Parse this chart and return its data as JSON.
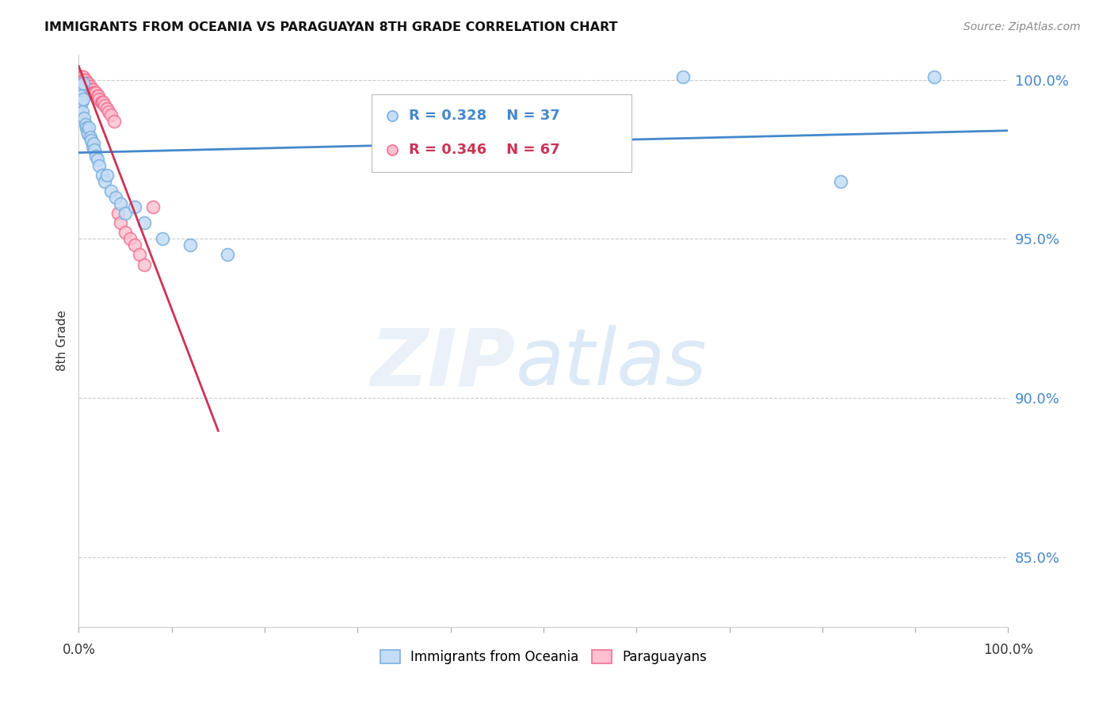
{
  "title": "IMMIGRANTS FROM OCEANIA VS PARAGUAYAN 8TH GRADE CORRELATION CHART",
  "source": "Source: ZipAtlas.com",
  "ylabel": "8th Grade",
  "xmin": 0.0,
  "xmax": 1.0,
  "ymin": 0.828,
  "ymax": 1.008,
  "blue_color": "#7ab0e0",
  "pink_color": "#f07090",
  "blue_fill": "#c5dcf5",
  "pink_fill": "#ffc0d0",
  "line_blue": "#4488cc",
  "line_pink": "#cc3355",
  "legend_R_blue": "R = 0.328",
  "legend_N_blue": "N = 37",
  "legend_R_pink": "R = 0.346",
  "legend_N_pink": "N = 67",
  "legend_label_blue": "Immigrants from Oceania",
  "legend_label_pink": "Paraguayans",
  "yticks": [
    0.85,
    0.9,
    0.95,
    1.0
  ],
  "ytick_labels": [
    "85.0%",
    "90.0%",
    "95.0%",
    "100.0%"
  ],
  "blue_scatter_x": [
    0.001,
    0.001,
    0.001,
    0.002,
    0.003,
    0.004,
    0.005,
    0.006,
    0.007,
    0.008,
    0.009,
    0.01,
    0.011,
    0.012,
    0.013,
    0.015,
    0.016,
    0.017,
    0.018,
    0.02,
    0.022,
    0.025,
    0.028,
    0.03,
    0.035,
    0.04,
    0.045,
    0.05,
    0.06,
    0.07,
    0.09,
    0.12,
    0.16,
    0.65,
    0.82,
    0.92,
    0.005
  ],
  "blue_scatter_y": [
    0.998,
    0.997,
    0.992,
    0.995,
    0.993,
    0.99,
    0.994,
    0.988,
    0.986,
    0.985,
    0.984,
    0.983,
    0.985,
    0.982,
    0.981,
    0.979,
    0.98,
    0.978,
    0.976,
    0.975,
    0.973,
    0.97,
    0.968,
    0.97,
    0.965,
    0.963,
    0.961,
    0.958,
    0.96,
    0.955,
    0.95,
    0.948,
    0.945,
    1.001,
    0.968,
    1.001,
    0.999
  ],
  "pink_scatter_x": [
    0.0005,
    0.0005,
    0.0008,
    0.001,
    0.001,
    0.001,
    0.001,
    0.001,
    0.0015,
    0.0015,
    0.002,
    0.002,
    0.002,
    0.002,
    0.003,
    0.003,
    0.003,
    0.003,
    0.004,
    0.004,
    0.004,
    0.004,
    0.005,
    0.005,
    0.005,
    0.005,
    0.006,
    0.006,
    0.006,
    0.007,
    0.007,
    0.007,
    0.008,
    0.008,
    0.009,
    0.009,
    0.01,
    0.01,
    0.011,
    0.012,
    0.012,
    0.013,
    0.014,
    0.015,
    0.015,
    0.016,
    0.017,
    0.018,
    0.02,
    0.021,
    0.022,
    0.024,
    0.025,
    0.026,
    0.028,
    0.03,
    0.032,
    0.035,
    0.038,
    0.042,
    0.045,
    0.05,
    0.055,
    0.06,
    0.065,
    0.07,
    0.08
  ],
  "pink_scatter_y": [
    1.001,
    1.001,
    1.001,
    1.001,
    1.001,
    0.999,
    0.998,
    0.998,
    1.001,
    0.999,
    1.001,
    1.0,
    0.999,
    0.998,
    1.001,
    1.0,
    0.999,
    0.998,
    1.001,
    1.0,
    0.999,
    0.998,
    1.001,
    1.0,
    0.999,
    0.998,
    1.0,
    0.999,
    0.998,
    1.0,
    0.999,
    0.998,
    0.999,
    0.998,
    0.999,
    0.998,
    0.999,
    0.998,
    0.998,
    0.998,
    0.997,
    0.997,
    0.997,
    0.997,
    0.996,
    0.996,
    0.996,
    0.996,
    0.995,
    0.995,
    0.994,
    0.993,
    0.993,
    0.993,
    0.992,
    0.991,
    0.99,
    0.989,
    0.987,
    0.958,
    0.955,
    0.952,
    0.95,
    0.948,
    0.945,
    0.942,
    0.96
  ]
}
